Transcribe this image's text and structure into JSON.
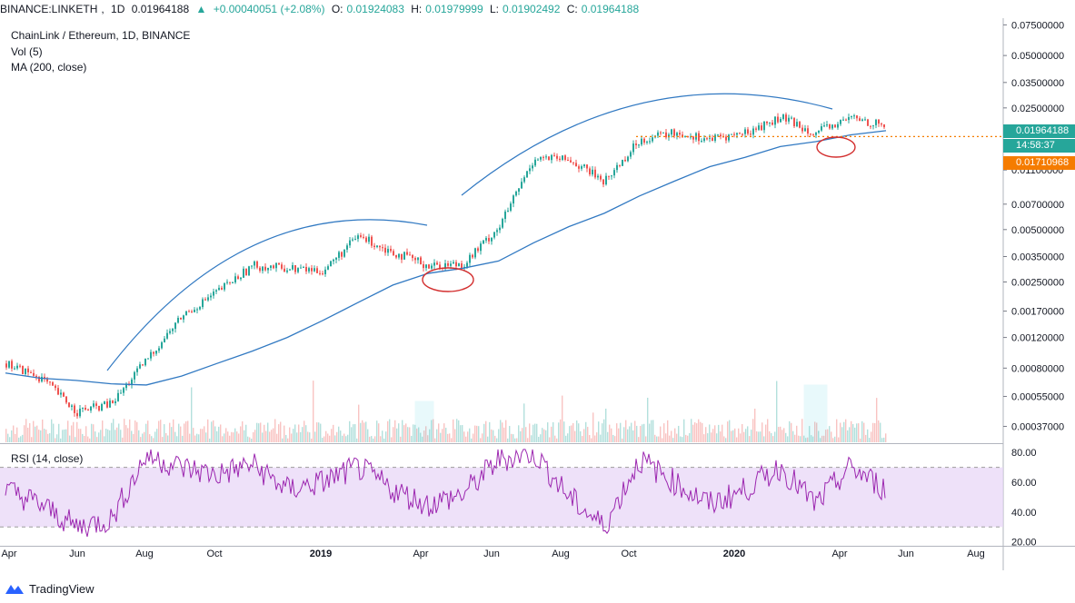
{
  "header": {
    "symbol": "BINANCE:LINKETH",
    "interval": "1D",
    "last": "0.01964188",
    "change": "+0.00040051 (+2.08%)",
    "open_label": "O:",
    "open": "0.01924083",
    "high_label": "H:",
    "high": "0.01979999",
    "low_label": "L:",
    "low": "0.01902492",
    "close_label": "C:",
    "close": "0.01964188"
  },
  "legend": {
    "title": "ChainLink / Ethereum, 1D, BINANCE",
    "vol": "Vol (5)",
    "ma": "MA (200, close)",
    "rsi": "RSI (14, close)"
  },
  "price_tags": {
    "current": "0.01964188",
    "countdown": "14:58:37",
    "horizontal_level": "0.01710968"
  },
  "footer": {
    "brand": "TradingView"
  },
  "colors": {
    "up": "#26a69a",
    "down": "#ef5350",
    "ma": "#3179c2",
    "rsi": "#9c27b0",
    "rsi_band": "#e7d4f7",
    "level": "#f57c00",
    "annotation_circle": "#d32f2f",
    "volume_box": "#4dd0e1"
  },
  "chart_data": [
    {
      "type": "line",
      "title": "ChainLink / Ethereum, 1D, BINANCE",
      "scale": "log",
      "y_ticks": [
        0.075,
        0.05,
        0.035,
        0.025,
        0.011,
        0.007,
        0.005,
        0.0035,
        0.0025,
        0.0017,
        0.0012,
        0.0008,
        0.00055,
        0.00037
      ],
      "y_tick_labels": [
        "0.07500000",
        "0.05000000",
        "0.03500000",
        "0.02500000",
        "0.01100000",
        "0.00700000",
        "0.00500000",
        "0.00350000",
        "0.00250000",
        "0.00170000",
        "0.00120000",
        "0.00080000",
        "0.00055000",
        "0.00037000"
      ],
      "x_tick_labels": [
        "Apr",
        "Jun",
        "Aug",
        "Oct",
        "2019",
        "Apr",
        "Jun",
        "Aug",
        "Oct",
        "2020",
        "Apr",
        "Jun",
        "Aug"
      ],
      "x_bold": [
        false,
        false,
        false,
        false,
        true,
        false,
        false,
        false,
        false,
        true,
        false,
        false,
        false
      ],
      "x": [
        "2018-04",
        "2018-05",
        "2018-06",
        "2018-07",
        "2018-08",
        "2018-09",
        "2018-10",
        "2018-11",
        "2018-12",
        "2019-01",
        "2019-02",
        "2019-03",
        "2019-04",
        "2019-05",
        "2019-06",
        "2019-07",
        "2019-08",
        "2019-09",
        "2019-10",
        "2019-11",
        "2019-12",
        "2020-01",
        "2020-02",
        "2020-03",
        "2020-04",
        "2020-05"
      ],
      "series": [
        {
          "name": "Close",
          "values": [
            0.00085,
            0.0007,
            0.00045,
            0.0005,
            0.0009,
            0.0016,
            0.0022,
            0.0031,
            0.003,
            0.0029,
            0.0046,
            0.0037,
            0.0031,
            0.0032,
            0.0052,
            0.013,
            0.0125,
            0.0095,
            0.0165,
            0.018,
            0.0165,
            0.018,
            0.022,
            0.018,
            0.022,
            0.0196
          ]
        },
        {
          "name": "MA (200, close)",
          "values": [
            0.00075,
            0.0007,
            0.00068,
            0.00065,
            0.00064,
            0.00072,
            0.00085,
            0.001,
            0.0012,
            0.0015,
            0.0019,
            0.0024,
            0.0028,
            0.003,
            0.0033,
            0.0042,
            0.0052,
            0.0062,
            0.0078,
            0.0095,
            0.0115,
            0.013,
            0.015,
            0.016,
            0.0175,
            0.0185
          ]
        }
      ],
      "horizontal_level": 0.01710968,
      "ylim": [
        0.0003,
        0.08
      ]
    },
    {
      "type": "line",
      "title": "RSI (14, close)",
      "y_ticks": [
        80,
        60,
        40,
        20
      ],
      "y_tick_labels": [
        "80.00",
        "60.00",
        "40.00",
        "20.00"
      ],
      "band": [
        30,
        70
      ],
      "ylim": [
        18,
        85
      ],
      "x": [
        "2018-04",
        "2018-05",
        "2018-06",
        "2018-07",
        "2018-08",
        "2018-09",
        "2018-10",
        "2018-11",
        "2018-12",
        "2019-01",
        "2019-02",
        "2019-03",
        "2019-04",
        "2019-05",
        "2019-06",
        "2019-07",
        "2019-08",
        "2019-09",
        "2019-10",
        "2019-11",
        "2019-12",
        "2020-01",
        "2020-02",
        "2020-03",
        "2020-04",
        "2020-05"
      ],
      "series": [
        {
          "name": "RSI (14, close)",
          "values": [
            55,
            45,
            30,
            35,
            78,
            70,
            65,
            72,
            55,
            60,
            70,
            55,
            45,
            52,
            75,
            80,
            50,
            30,
            75,
            60,
            45,
            55,
            70,
            45,
            70,
            55
          ]
        }
      ]
    }
  ]
}
